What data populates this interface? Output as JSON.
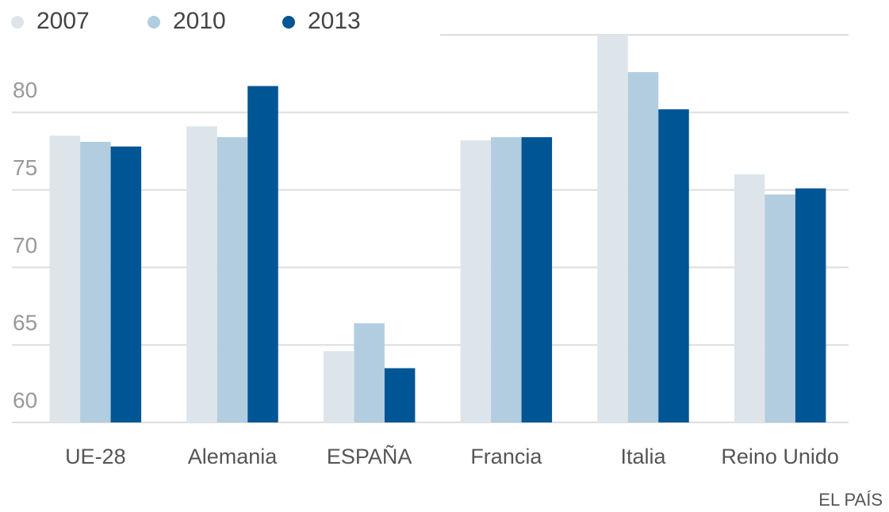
{
  "chart_data": {
    "type": "bar",
    "categories": [
      "UE-28",
      "Alemania",
      "ESPAÑA",
      "Francia",
      "Italia",
      "Reino Unido"
    ],
    "series": [
      {
        "name": "2007",
        "color": "#dde5ea",
        "values": [
          78.5,
          79.1,
          64.6,
          78.2,
          85.0,
          76.0
        ]
      },
      {
        "name": "2010",
        "color": "#b3cde0",
        "values": [
          78.1,
          78.4,
          66.4,
          78.4,
          82.6,
          74.7
        ]
      },
      {
        "name": "2013",
        "color": "#005595",
        "values": [
          77.8,
          81.7,
          63.5,
          78.4,
          80.2,
          75.1
        ]
      }
    ],
    "ylim": [
      60,
      85
    ],
    "yticks": [
      60,
      65,
      70,
      75,
      80
    ],
    "grid": true,
    "source": "EL PAÍS"
  }
}
